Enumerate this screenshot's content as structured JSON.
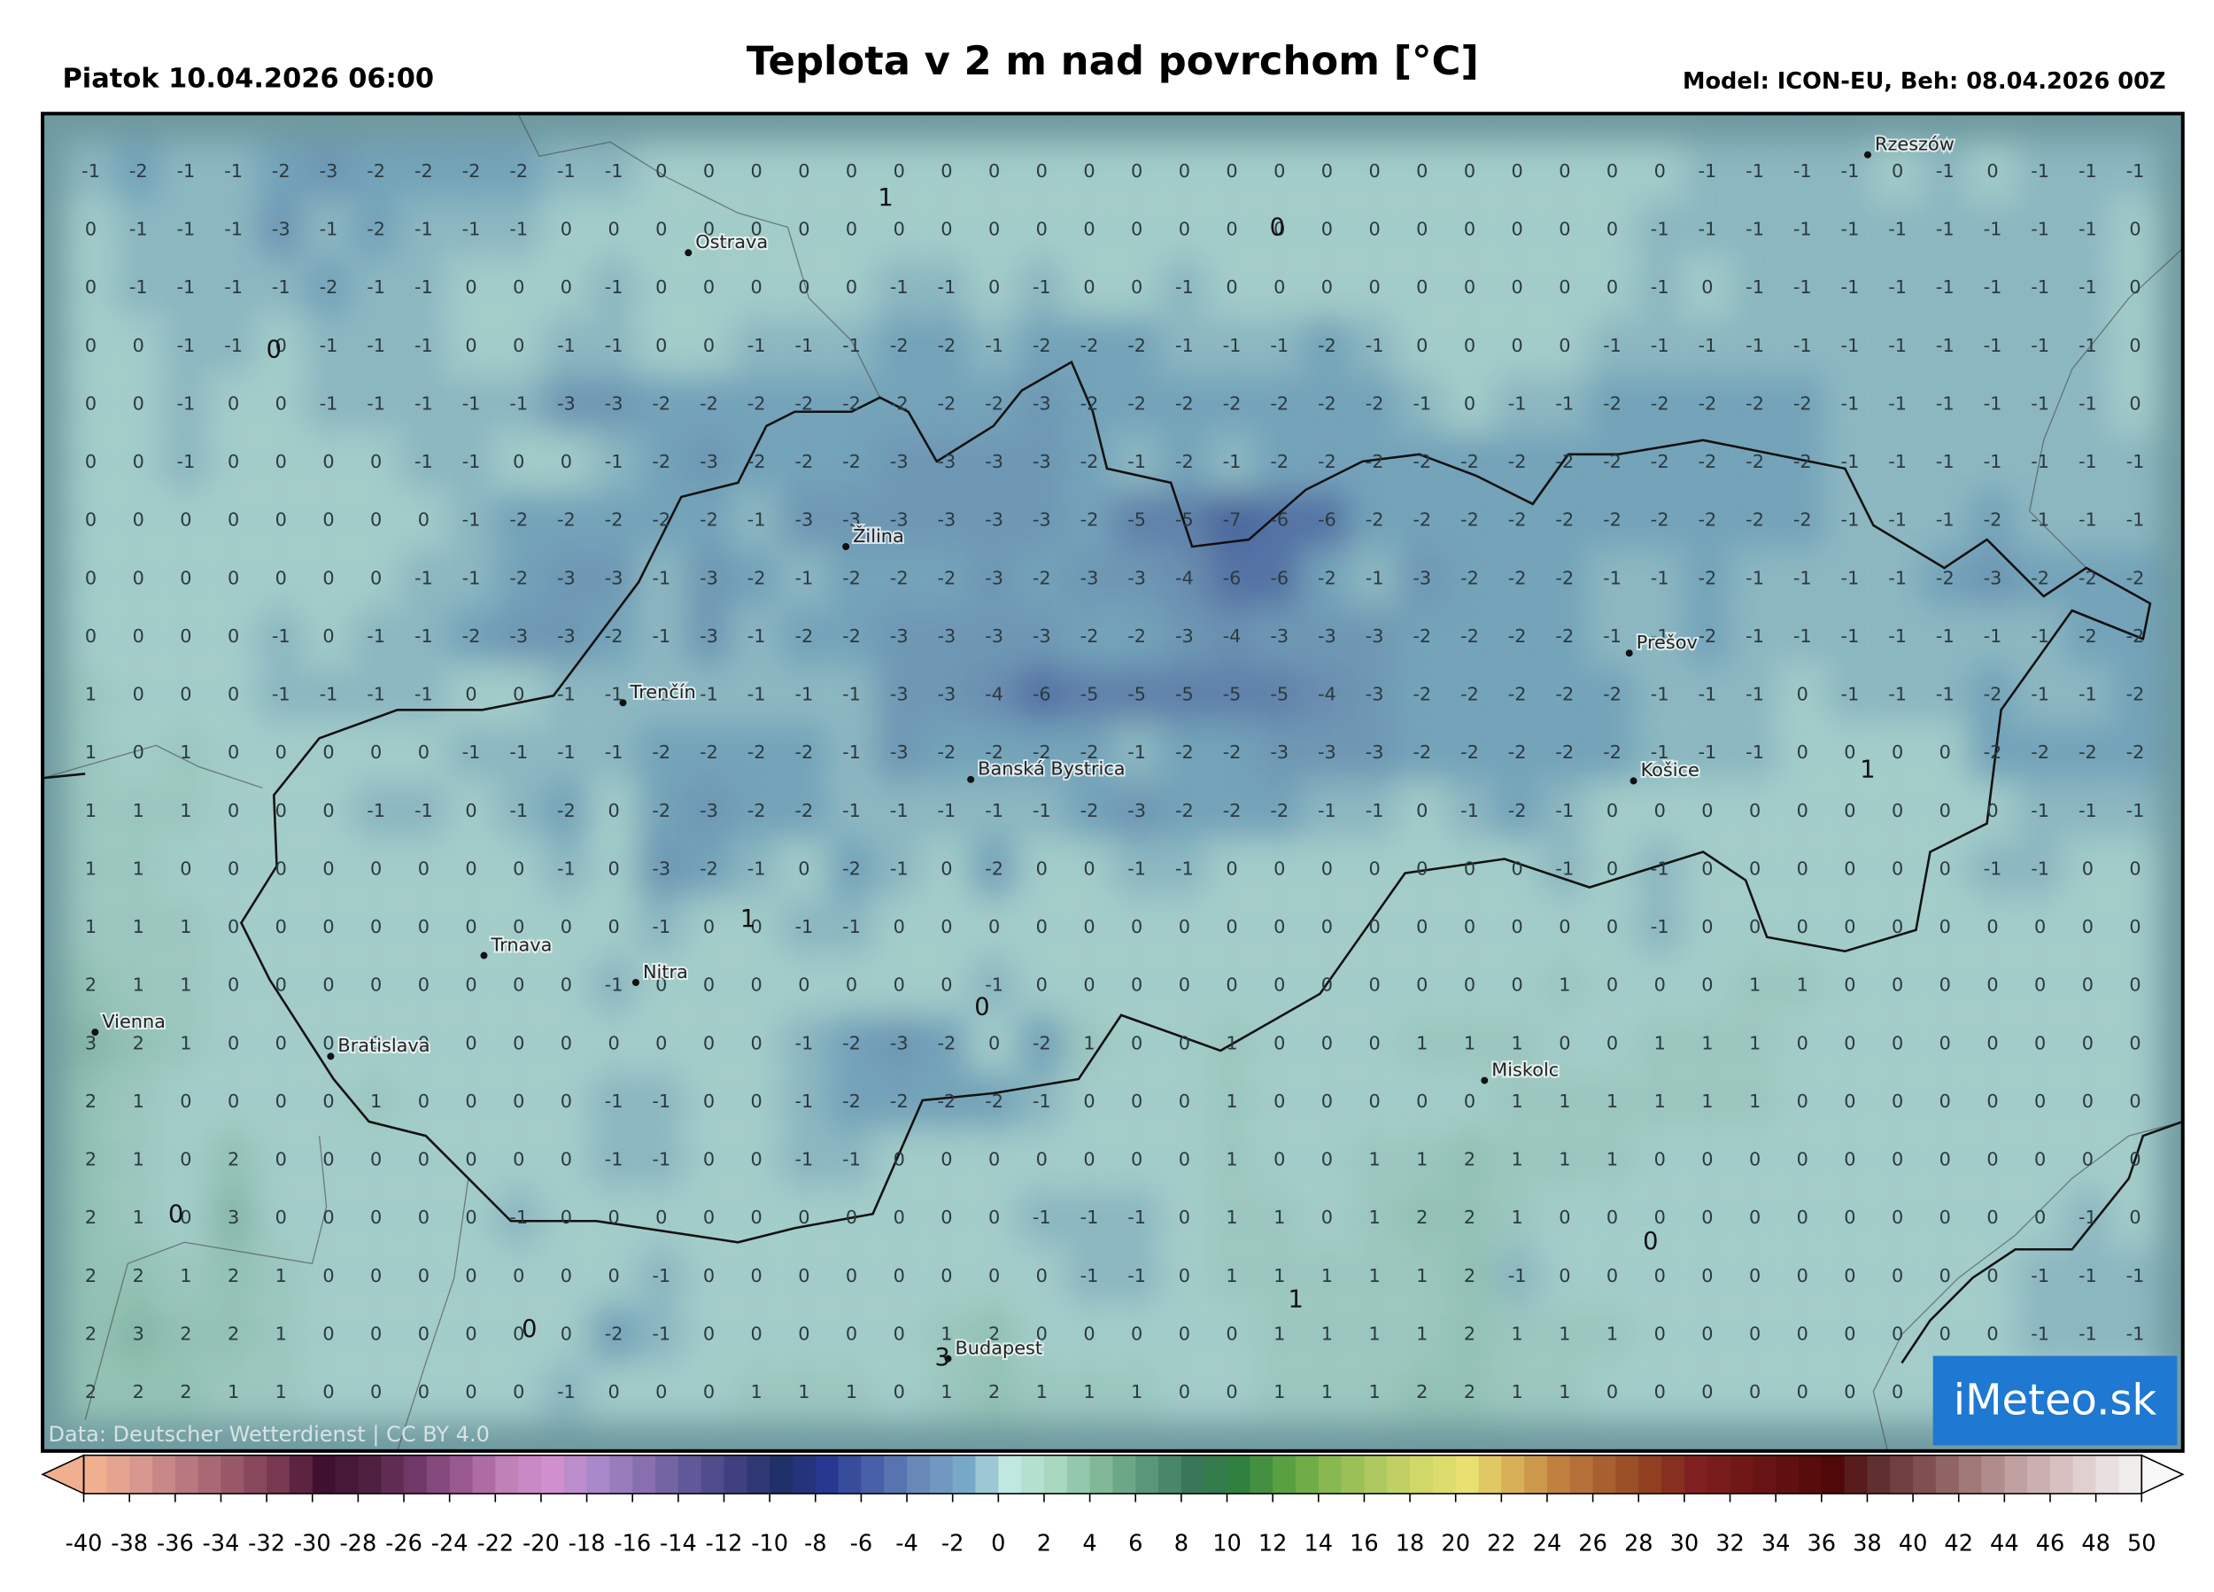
{
  "header": {
    "left": "Piatok 10.04.2026 06:00",
    "title": "Teplota v 2 m nad povrchom [°C]",
    "right": "Model: ICON-EU, Beh: 08.04.2026 00Z"
  },
  "map": {
    "grid": [
      [
        -1,
        -2,
        -1,
        -1,
        -2,
        -3,
        -2,
        -2,
        -2,
        -2,
        -1,
        -1,
        0,
        0,
        0,
        0,
        0,
        0,
        0,
        0,
        0,
        0,
        0,
        0,
        0,
        0,
        0,
        0,
        0,
        0,
        0,
        0,
        0,
        0,
        -1,
        -1,
        -1,
        -1,
        0,
        -1,
        0,
        -1,
        -1,
        -1
      ],
      [
        0,
        -1,
        -1,
        -1,
        -3,
        -1,
        -2,
        -1,
        -1,
        -1,
        0,
        0,
        0,
        0,
        0,
        0,
        0,
        0,
        0,
        0,
        0,
        0,
        0,
        0,
        0,
        0,
        0,
        0,
        0,
        0,
        0,
        0,
        0,
        -1,
        -1,
        -1,
        -1,
        -1,
        -1,
        -1,
        -1,
        -1,
        -1,
        0
      ],
      [
        0,
        -1,
        -1,
        -1,
        -1,
        -2,
        -1,
        -1,
        0,
        0,
        0,
        -1,
        0,
        0,
        0,
        0,
        0,
        -1,
        -1,
        0,
        -1,
        0,
        0,
        -1,
        0,
        0,
        0,
        0,
        0,
        0,
        0,
        0,
        0,
        -1,
        0,
        -1,
        -1,
        -1,
        -1,
        -1,
        -1,
        -1,
        -1,
        0
      ],
      [
        0,
        0,
        -1,
        -1,
        0,
        -1,
        -1,
        -1,
        0,
        0,
        -1,
        -1,
        0,
        0,
        -1,
        -1,
        -1,
        -2,
        -2,
        -1,
        -2,
        -2,
        -2,
        -1,
        -1,
        -1,
        -2,
        -1,
        0,
        0,
        0,
        0,
        -1,
        -1,
        -1,
        -1,
        -1,
        -1,
        -1,
        -1,
        -1,
        -1,
        -1,
        0
      ],
      [
        0,
        0,
        -1,
        0,
        0,
        -1,
        -1,
        -1,
        -1,
        -1,
        -3,
        -3,
        -2,
        -2,
        -2,
        -2,
        -2,
        -2,
        -2,
        -2,
        -3,
        -2,
        -2,
        -2,
        -2,
        -2,
        -2,
        -2,
        -1,
        0,
        -1,
        -1,
        -2,
        -2,
        -2,
        -2,
        -2,
        -1,
        -1,
        -1,
        -1,
        -1,
        -1,
        0
      ],
      [
        0,
        0,
        -1,
        0,
        0,
        0,
        0,
        -1,
        -1,
        0,
        0,
        -1,
        -2,
        -3,
        -2,
        -2,
        -2,
        -3,
        -3,
        -3,
        -3,
        -2,
        -1,
        -2,
        -1,
        -2,
        -2,
        -2,
        -2,
        -2,
        -2,
        -2,
        -2,
        -2,
        -2,
        -2,
        -2,
        -1,
        -1,
        -1,
        -1,
        -1,
        -1,
        -1
      ],
      [
        0,
        0,
        0,
        0,
        0,
        0,
        0,
        0,
        -1,
        -2,
        -2,
        -2,
        -2,
        -2,
        -1,
        -3,
        -3,
        -3,
        -3,
        -3,
        -3,
        -2,
        -5,
        -5,
        -7,
        -6,
        -6,
        -2,
        -2,
        -2,
        -2,
        -2,
        -2,
        -2,
        -2,
        -2,
        -2,
        -1,
        -1,
        -1,
        -2,
        -1,
        -1,
        -1
      ],
      [
        0,
        0,
        0,
        0,
        0,
        0,
        0,
        -1,
        -1,
        -2,
        -3,
        -3,
        -1,
        -3,
        -2,
        -1,
        -2,
        -2,
        -2,
        -3,
        -2,
        -3,
        -3,
        -4,
        -6,
        -6,
        -2,
        -1,
        -3,
        -2,
        -2,
        -2,
        -1,
        -1,
        -2,
        -1,
        -1,
        -1,
        -1,
        -2,
        -3,
        -2,
        -2,
        -2
      ],
      [
        0,
        0,
        0,
        0,
        -1,
        0,
        -1,
        -1,
        -2,
        -3,
        -3,
        -2,
        -1,
        -3,
        -1,
        -2,
        -2,
        -3,
        -3,
        -3,
        -3,
        -2,
        -2,
        -3,
        -4,
        -3,
        -3,
        -3,
        -2,
        -2,
        -2,
        -2,
        -1,
        -1,
        -2,
        -1,
        -1,
        -1,
        -1,
        -1,
        -1,
        -1,
        -2,
        -2
      ],
      [
        1,
        0,
        0,
        0,
        -1,
        -1,
        -1,
        -1,
        0,
        0,
        -1,
        -1,
        -1,
        -1,
        -1,
        -1,
        -1,
        -3,
        -3,
        -4,
        -6,
        -5,
        -5,
        -5,
        -5,
        -5,
        -4,
        -3,
        -2,
        -2,
        -2,
        -2,
        -2,
        -1,
        -1,
        -1,
        0,
        -1,
        -1,
        -1,
        -2,
        -1,
        -1,
        -2
      ],
      [
        1,
        0,
        1,
        0,
        0,
        0,
        0,
        0,
        -1,
        -1,
        -1,
        -1,
        -2,
        -2,
        -2,
        -2,
        -1,
        -3,
        -2,
        -2,
        -2,
        -2,
        -1,
        -2,
        -2,
        -3,
        -3,
        -3,
        -2,
        -2,
        -2,
        -2,
        -2,
        -1,
        -1,
        -1,
        0,
        0,
        0,
        0,
        -2,
        -2,
        -2,
        -2
      ],
      [
        1,
        1,
        1,
        0,
        0,
        0,
        -1,
        -1,
        0,
        -1,
        -2,
        0,
        -2,
        -3,
        -2,
        -2,
        -1,
        -1,
        -1,
        -1,
        -1,
        -2,
        -3,
        -2,
        -2,
        -2,
        -1,
        -1,
        0,
        -1,
        -2,
        -1,
        0,
        0,
        0,
        0,
        0,
        0,
        0,
        0,
        0,
        -1,
        -1,
        -1
      ],
      [
        1,
        1,
        0,
        0,
        0,
        0,
        0,
        0,
        0,
        0,
        -1,
        0,
        -3,
        -2,
        -1,
        0,
        -2,
        -1,
        0,
        -2,
        0,
        0,
        -1,
        -1,
        0,
        0,
        0,
        0,
        0,
        0,
        0,
        -1,
        0,
        -1,
        0,
        0,
        0,
        0,
        0,
        0,
        -1,
        -1,
        0,
        0
      ],
      [
        1,
        1,
        1,
        0,
        0,
        0,
        0,
        0,
        0,
        0,
        0,
        0,
        -1,
        0,
        0,
        -1,
        -1,
        0,
        0,
        0,
        0,
        0,
        0,
        0,
        0,
        0,
        0,
        0,
        0,
        0,
        0,
        0,
        0,
        -1,
        0,
        0,
        0,
        0,
        0,
        0,
        0,
        0,
        0,
        0
      ],
      [
        2,
        1,
        1,
        0,
        0,
        0,
        0,
        0,
        0,
        0,
        0,
        -1,
        0,
        0,
        0,
        0,
        0,
        0,
        0,
        -1,
        0,
        0,
        0,
        0,
        0,
        0,
        0,
        0,
        0,
        0,
        0,
        1,
        0,
        0,
        0,
        1,
        1,
        0,
        0,
        0,
        0,
        0,
        0,
        0
      ],
      [
        3,
        2,
        1,
        0,
        0,
        0,
        0,
        0,
        0,
        0,
        0,
        0,
        0,
        0,
        0,
        -1,
        -2,
        -3,
        -2,
        0,
        -2,
        1,
        0,
        0,
        1,
        0,
        0,
        0,
        1,
        1,
        1,
        0,
        0,
        1,
        1,
        1,
        0,
        0,
        0,
        0,
        0,
        0,
        0,
        0
      ],
      [
        2,
        1,
        0,
        0,
        0,
        0,
        1,
        0,
        0,
        0,
        0,
        -1,
        -1,
        0,
        0,
        -1,
        -2,
        -2,
        -2,
        -2,
        -1,
        0,
        0,
        0,
        1,
        0,
        0,
        0,
        0,
        0,
        1,
        1,
        1,
        1,
        1,
        1,
        0,
        0,
        0,
        0,
        0,
        0,
        0,
        0
      ],
      [
        2,
        1,
        0,
        2,
        0,
        0,
        0,
        0,
        0,
        0,
        0,
        -1,
        -1,
        0,
        0,
        -1,
        -1,
        0,
        0,
        0,
        0,
        0,
        0,
        0,
        1,
        0,
        0,
        1,
        1,
        2,
        1,
        1,
        1,
        0,
        0,
        0,
        0,
        0,
        0,
        0,
        0,
        0,
        0,
        0
      ],
      [
        2,
        1,
        0,
        3,
        0,
        0,
        0,
        0,
        0,
        -1,
        0,
        0,
        0,
        0,
        0,
        0,
        0,
        0,
        0,
        0,
        -1,
        -1,
        -1,
        0,
        1,
        1,
        0,
        1,
        2,
        2,
        1,
        0,
        0,
        0,
        0,
        0,
        0,
        0,
        0,
        0,
        0,
        0,
        -1,
        0
      ],
      [
        2,
        2,
        1,
        2,
        1,
        0,
        0,
        0,
        0,
        0,
        0,
        0,
        -1,
        0,
        0,
        0,
        0,
        0,
        0,
        0,
        0,
        -1,
        -1,
        0,
        1,
        1,
        1,
        1,
        1,
        2,
        -1,
        0,
        0,
        0,
        0,
        0,
        0,
        0,
        0,
        0,
        0,
        -1,
        -1,
        -1
      ],
      [
        2,
        3,
        2,
        2,
        1,
        0,
        0,
        0,
        0,
        0,
        0,
        -2,
        -1,
        0,
        0,
        0,
        0,
        0,
        1,
        2,
        0,
        0,
        0,
        0,
        0,
        1,
        1,
        1,
        1,
        2,
        1,
        1,
        1,
        0,
        0,
        0,
        0,
        0,
        0,
        0,
        0,
        -1,
        -1,
        -1
      ],
      [
        2,
        2,
        2,
        1,
        1,
        0,
        0,
        0,
        0,
        0,
        -1,
        0,
        0,
        0,
        1,
        1,
        1,
        0,
        1,
        2,
        1,
        1,
        1,
        0,
        0,
        1,
        1,
        1,
        2,
        2,
        1,
        1,
        0,
        0,
        0,
        0,
        0,
        0,
        0,
        0,
        0,
        0,
        0,
        0
      ]
    ],
    "extrema": [
      1,
      0,
      0,
      1,
      0,
      1,
      0,
      0,
      1,
      0,
      3
    ],
    "cities": [
      "Rzeszów",
      "Ostrava",
      "Žilina",
      "Prešov",
      "Trenčín",
      "Banská Bystrica",
      "Košice",
      "Trnava",
      "Nitra",
      "Vienna",
      "Bratislava",
      "Miskolc",
      "Budapest"
    ],
    "attribution": "Data: Deutscher Wetterdienst | CC BY 4.0"
  },
  "logo": "iMeteo.sk",
  "colorbar": {
    "ticks": [
      -40,
      -38,
      -36,
      -34,
      -32,
      -30,
      -28,
      -26,
      -24,
      -22,
      -20,
      -18,
      -16,
      -14,
      -12,
      -10,
      -8,
      -6,
      -4,
      -2,
      0,
      2,
      4,
      6,
      8,
      10,
      12,
      14,
      16,
      18,
      20,
      22,
      24,
      26,
      28,
      30,
      32,
      34,
      36,
      38,
      40,
      42,
      44,
      46,
      48,
      50
    ],
    "colors": [
      "#f0b090",
      "#d89890",
      "#b87880",
      "#985868",
      "#783850",
      "#401030",
      "#502040",
      "#703868",
      "#9a5890",
      "#c080b8",
      "#d090d0",
      "#a888c8",
      "#8870b0",
      "#605898",
      "#404080",
      "#203068",
      "#283890",
      "#4860a8",
      "#6888b8",
      "#78a8c8",
      "#c0e8e0",
      "#a8d8c0",
      "#80b898",
      "#589878",
      "#387858",
      "#308040",
      "#58a040",
      "#88b850",
      "#b0c860",
      "#d0d868",
      "#e8e070",
      "#d8b058",
      "#c08040",
      "#a86030",
      "#904020",
      "#802020",
      "#701818",
      "#601010",
      "#500808",
      "#603030",
      "#805050",
      "#a07878",
      "#c0a0a0",
      "#d8c0c0",
      "#e8e0e0",
      "#f8f8f8"
    ]
  }
}
